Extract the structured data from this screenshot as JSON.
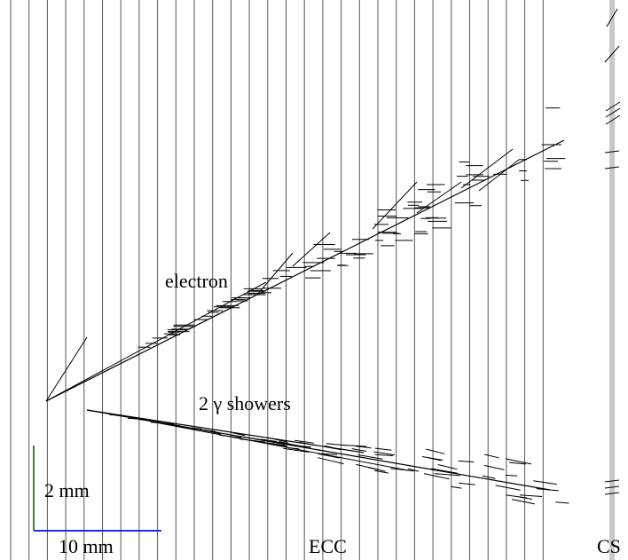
{
  "labels": {
    "electron": "electron",
    "gamma_showers": "2 γ showers",
    "vertical_scale": "2 mm",
    "horizontal_scale": "10 mm",
    "ecc": "ECC",
    "cs": "CS"
  },
  "colors": {
    "background": "#ffffff",
    "plate_lines": "#555555",
    "tracks": "#000000",
    "cs_band": "#c8c8c8",
    "scale_vertical": "#2e8b2e",
    "scale_horizontal": "#1f2fd0"
  }
}
